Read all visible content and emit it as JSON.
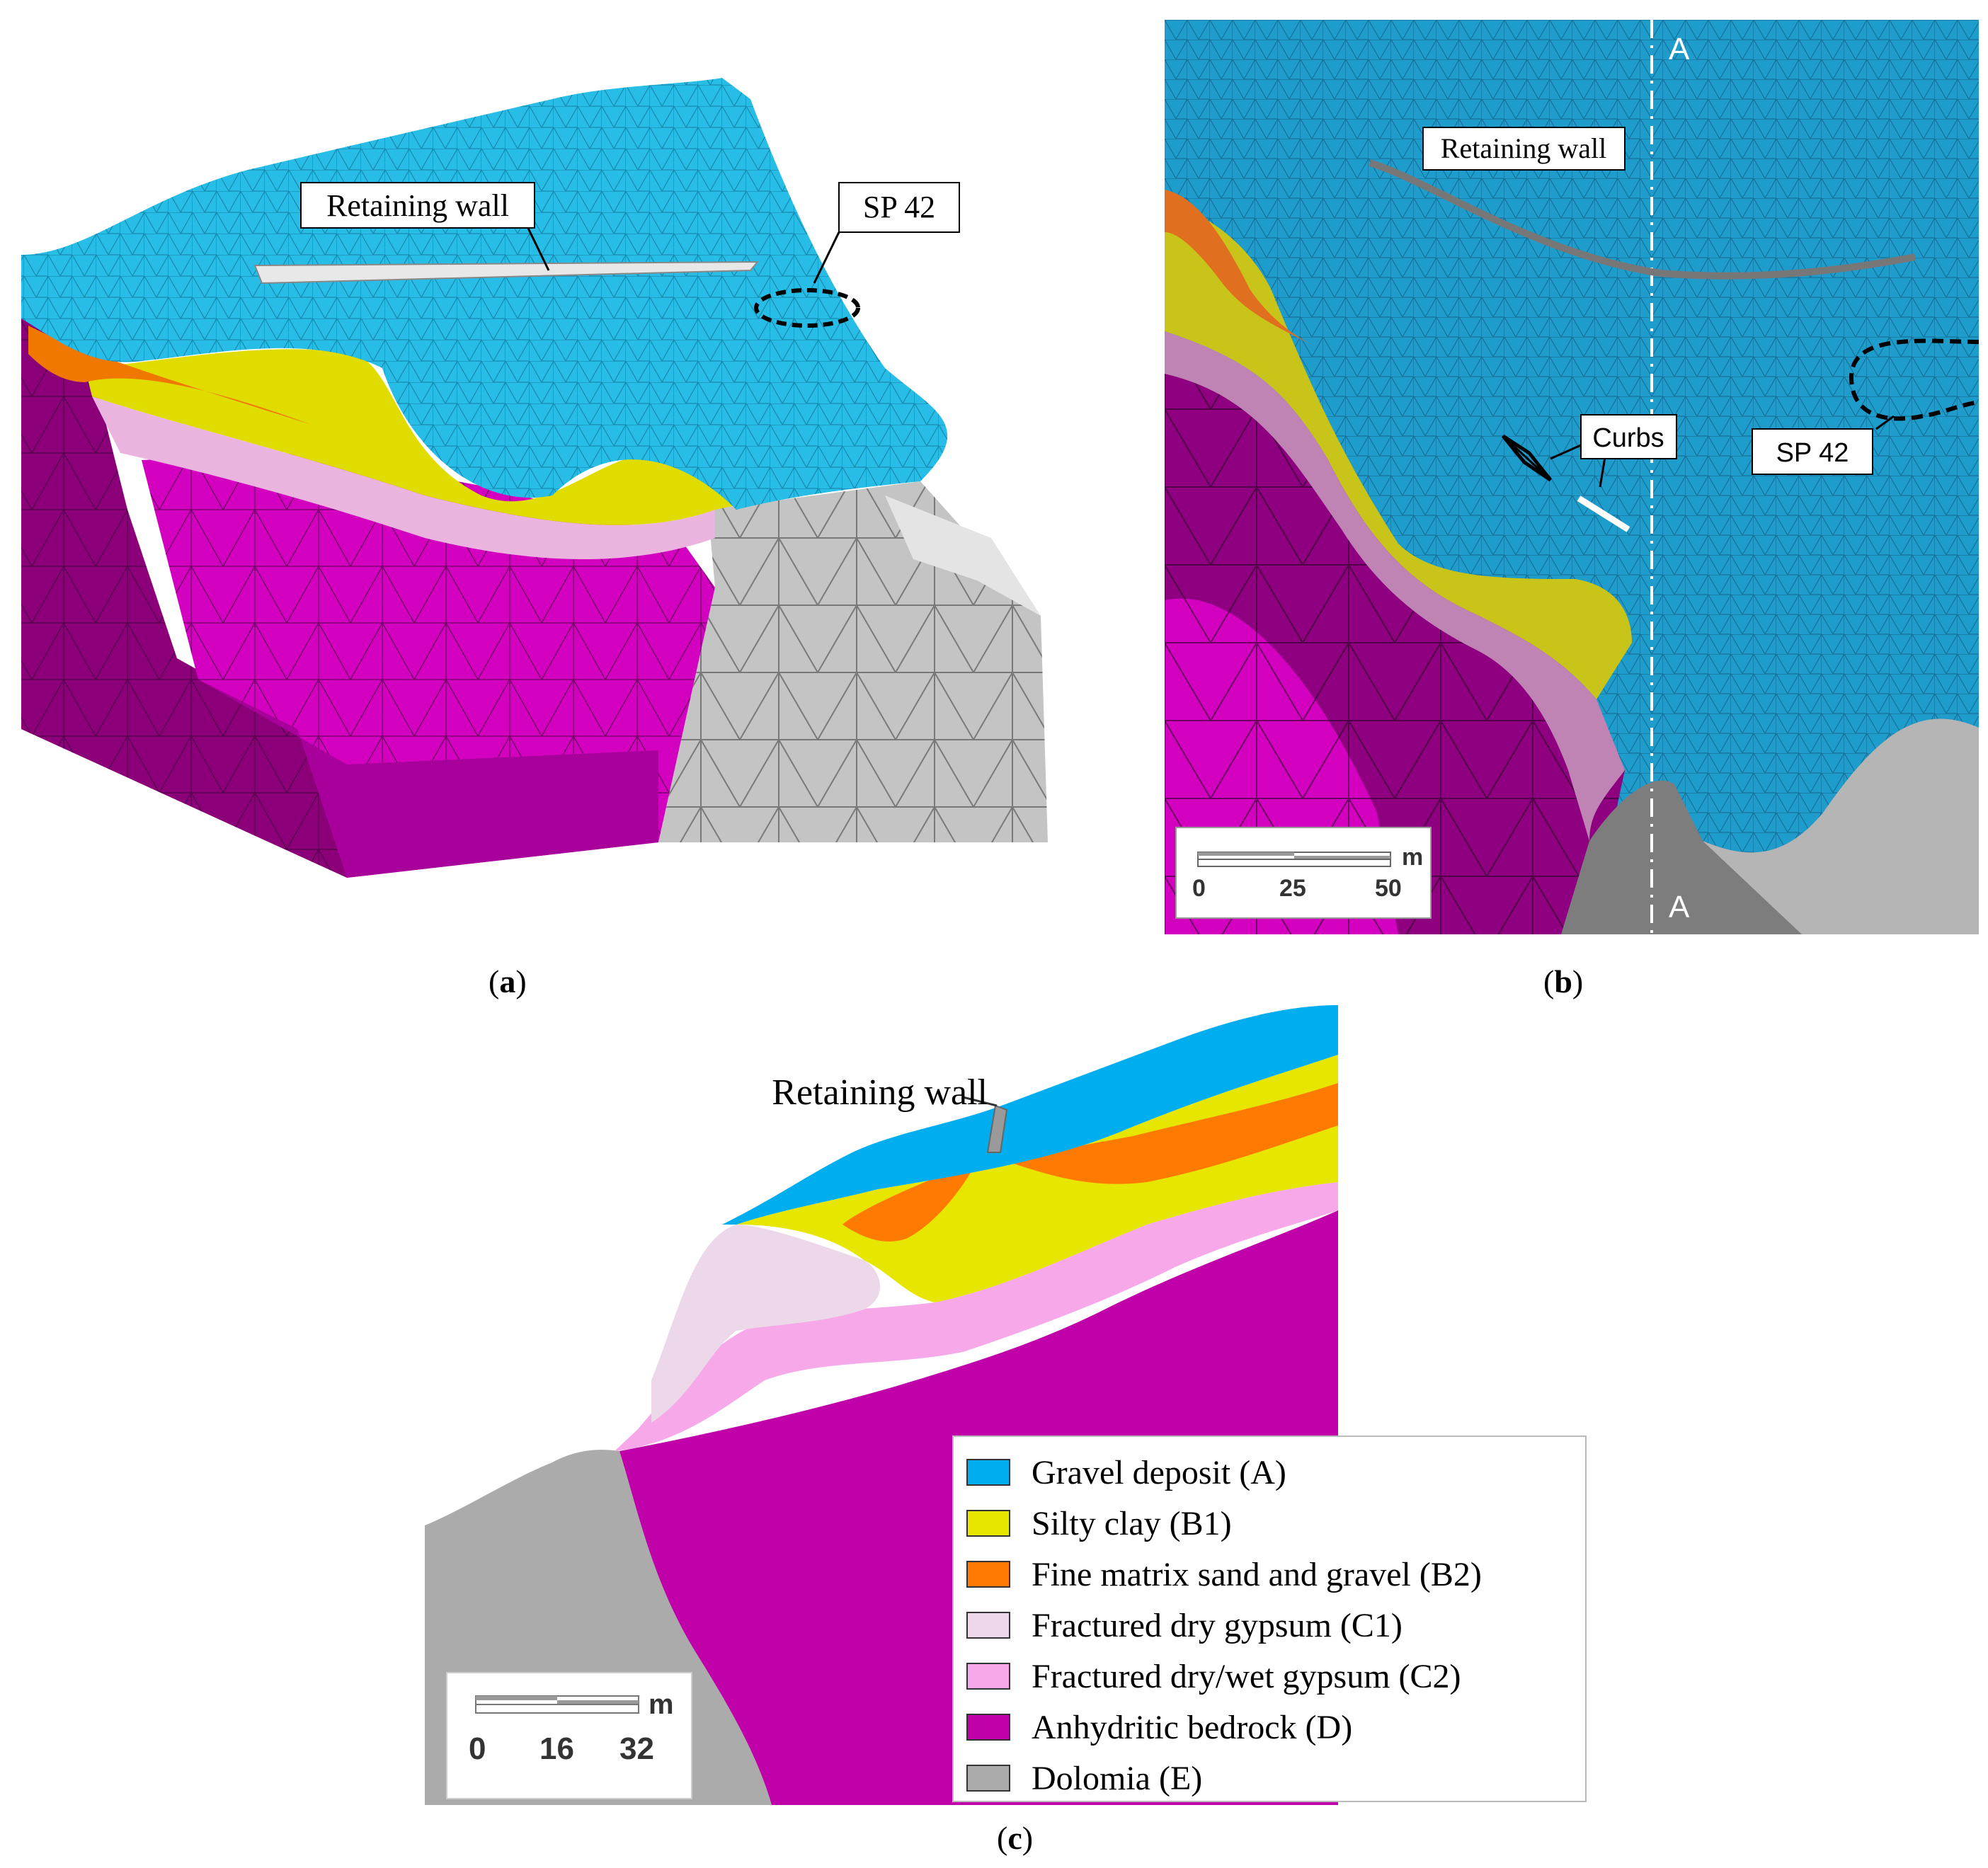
{
  "panel_a": {
    "caption": "a",
    "labels": {
      "retaining_wall": "Retaining wall",
      "sp42": "SP 42"
    }
  },
  "panel_b": {
    "caption": "b",
    "labels": {
      "retaining_wall": "Retaining wall",
      "sp42": "SP 42",
      "curbs": "Curbs",
      "section_top": "A",
      "section_bottom": "A"
    },
    "scalebar": {
      "ticks": [
        "0",
        "25",
        "50"
      ],
      "unit": "m"
    }
  },
  "panel_c": {
    "caption": "c",
    "labels": {
      "retaining_wall": "Retaining wall"
    },
    "scalebar": {
      "ticks": [
        "0",
        "16",
        "32"
      ],
      "unit": "m"
    },
    "legend": [
      {
        "label": "Gravel deposit (A)",
        "color": "#00aeef"
      },
      {
        "label": "Silty clay (B1)",
        "color": "#e6e600"
      },
      {
        "label": "Fine matrix sand and gravel (B2)",
        "color": "#ff7a00"
      },
      {
        "label": "Fractured dry gypsum (C1)",
        "color": "#ecd8e8"
      },
      {
        "label": "Fractured dry/wet gypsum (C2)",
        "color": "#f7a8e8"
      },
      {
        "label": "Anhydritic bedrock (D)",
        "color": "#c000a8"
      },
      {
        "label": "Dolomia (E)",
        "color": "#ababab"
      }
    ]
  }
}
